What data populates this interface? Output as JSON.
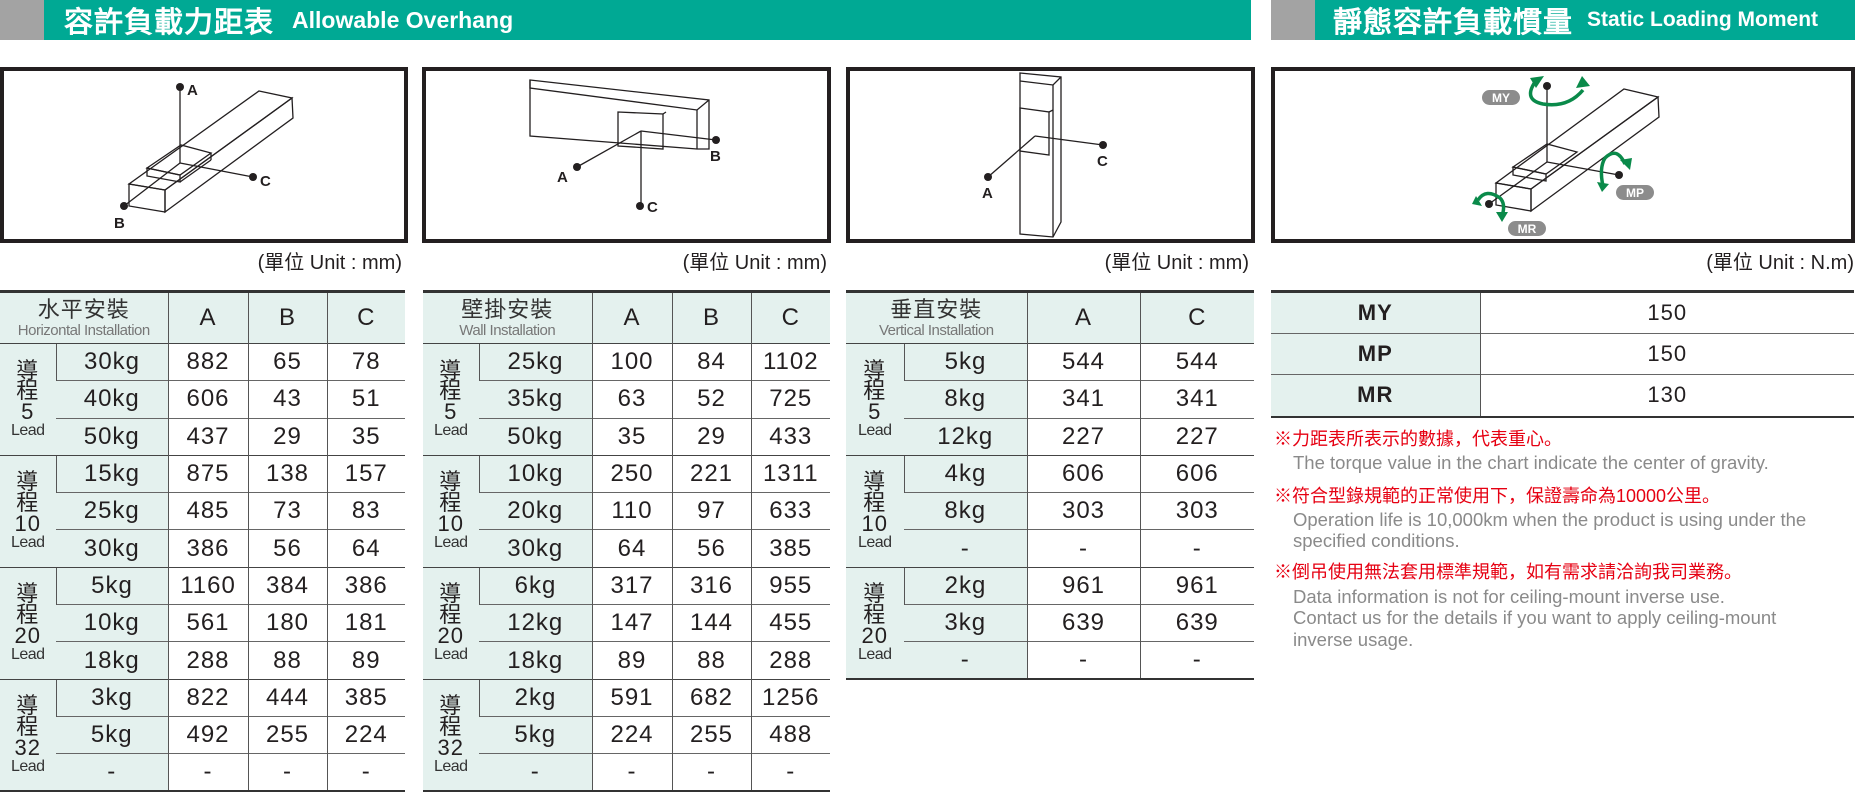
{
  "overhang": {
    "title_zh": "容許負載力距表",
    "title_en": "Allowable Overhang",
    "unit": "(單位 Unit : mm)"
  },
  "static": {
    "title_zh": "靜態容許負載慣量",
    "title_en": "Static Loading Moment",
    "unit": "(單位 Unit : N.m)"
  },
  "diagram_labels": {
    "a": "A",
    "b": "B",
    "c": "C",
    "my": "MY",
    "mp": "MP",
    "mr": "MR"
  },
  "accent_color": "#00a994",
  "lead_word": "導程",
  "lead_en": "Lead",
  "tables": [
    {
      "title_zh": "水平安裝",
      "title_en": "Horizontal Installation",
      "columns": [
        "A",
        "B",
        "C"
      ],
      "groups": [
        {
          "lead": "5",
          "rows": [
            [
              "30kg",
              "882",
              "65",
              "78"
            ],
            [
              "40kg",
              "606",
              "43",
              "51"
            ],
            [
              "50kg",
              "437",
              "29",
              "35"
            ]
          ]
        },
        {
          "lead": "10",
          "rows": [
            [
              "15kg",
              "875",
              "138",
              "157"
            ],
            [
              "25kg",
              "485",
              "73",
              "83"
            ],
            [
              "30kg",
              "386",
              "56",
              "64"
            ]
          ]
        },
        {
          "lead": "20",
          "rows": [
            [
              "5kg",
              "1160",
              "384",
              "386"
            ],
            [
              "10kg",
              "561",
              "180",
              "181"
            ],
            [
              "18kg",
              "288",
              "88",
              "89"
            ]
          ]
        },
        {
          "lead": "32",
          "rows": [
            [
              "3kg",
              "822",
              "444",
              "385"
            ],
            [
              "5kg",
              "492",
              "255",
              "224"
            ],
            [
              "-",
              "-",
              "-",
              "-"
            ]
          ]
        }
      ]
    },
    {
      "title_zh": "壁掛安裝",
      "title_en": "Wall Installation",
      "columns": [
        "A",
        "B",
        "C"
      ],
      "groups": [
        {
          "lead": "5",
          "rows": [
            [
              "25kg",
              "100",
              "84",
              "1102"
            ],
            [
              "35kg",
              "63",
              "52",
              "725"
            ],
            [
              "50kg",
              "35",
              "29",
              "433"
            ]
          ]
        },
        {
          "lead": "10",
          "rows": [
            [
              "10kg",
              "250",
              "221",
              "1311"
            ],
            [
              "20kg",
              "110",
              "97",
              "633"
            ],
            [
              "30kg",
              "64",
              "56",
              "385"
            ]
          ]
        },
        {
          "lead": "20",
          "rows": [
            [
              "6kg",
              "317",
              "316",
              "955"
            ],
            [
              "12kg",
              "147",
              "144",
              "455"
            ],
            [
              "18kg",
              "89",
              "88",
              "288"
            ]
          ]
        },
        {
          "lead": "32",
          "rows": [
            [
              "2kg",
              "591",
              "682",
              "1256"
            ],
            [
              "5kg",
              "224",
              "255",
              "488"
            ],
            [
              "-",
              "-",
              "-",
              "-"
            ]
          ]
        }
      ]
    },
    {
      "title_zh": "垂直安裝",
      "title_en": "Vertical Installation",
      "columns": [
        "A",
        "C"
      ],
      "groups": [
        {
          "lead": "5",
          "rows": [
            [
              "5kg",
              "544",
              "544"
            ],
            [
              "8kg",
              "341",
              "341"
            ],
            [
              "12kg",
              "227",
              "227"
            ]
          ]
        },
        {
          "lead": "10",
          "rows": [
            [
              "4kg",
              "606",
              "606"
            ],
            [
              "8kg",
              "303",
              "303"
            ],
            [
              "-",
              "-",
              "-"
            ]
          ]
        },
        {
          "lead": "20",
          "rows": [
            [
              "2kg",
              "961",
              "961"
            ],
            [
              "3kg",
              "639",
              "639"
            ],
            [
              "-",
              "-",
              "-"
            ]
          ]
        }
      ]
    }
  ],
  "moments": [
    {
      "label": "MY",
      "value": "150"
    },
    {
      "label": "MP",
      "value": "150"
    },
    {
      "label": "MR",
      "value": "130"
    }
  ],
  "notes": [
    {
      "zh": "※力距表所表示的數據，代表重心。",
      "en": [
        "The torque value in the chart indicate the center of gravity."
      ]
    },
    {
      "zh": "※符合型錄規範的正常使用下，保證壽命為10000公里。",
      "en": [
        "Operation life is 10,000km when the product is using under the",
        "specified conditions."
      ]
    },
    {
      "zh": "※倒吊使用無法套用標準規範，如有需求請洽詢我司業務。",
      "en": [
        "Data information is not for ceiling-mount inverse use.",
        "Contact us for the details if you want to apply ceiling-mount",
        "inverse usage."
      ]
    }
  ]
}
